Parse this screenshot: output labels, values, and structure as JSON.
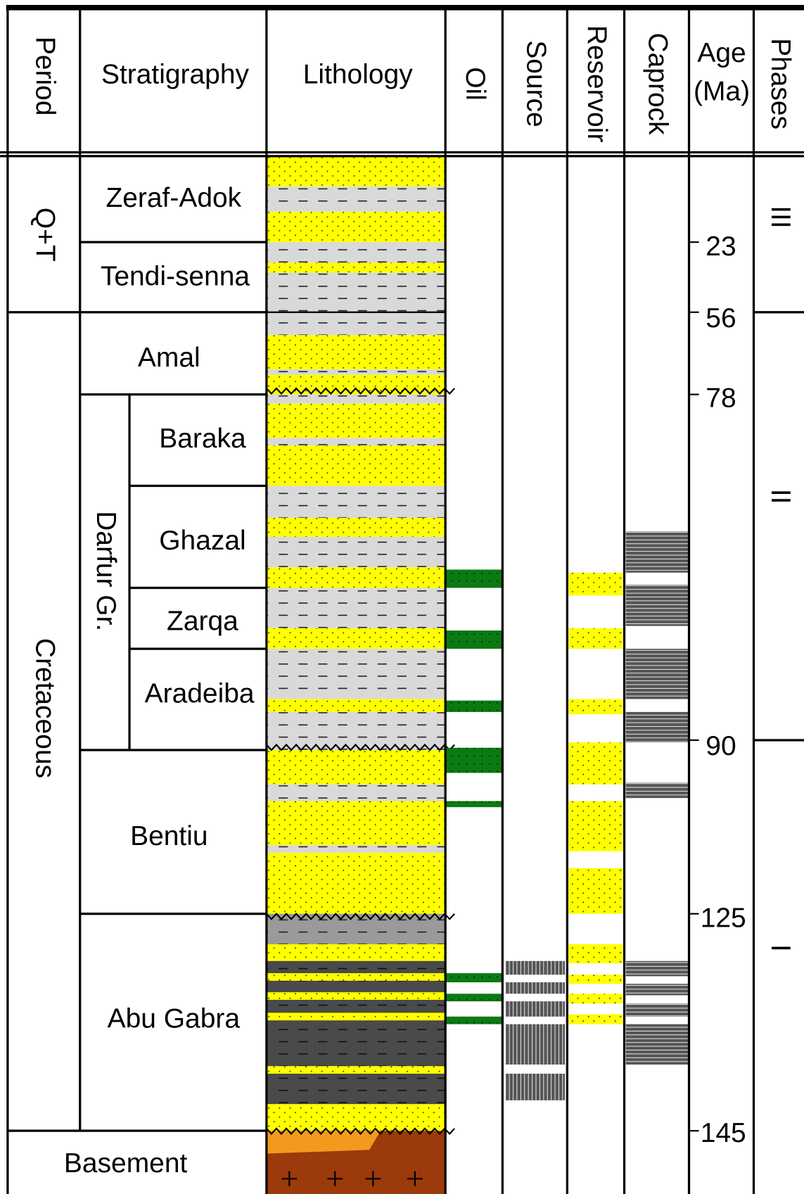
{
  "header": {
    "period": "Period",
    "stratigraphy": "Stratigraphy",
    "lithology": "Lithology",
    "oil": "Oil",
    "source": "Source",
    "reservoir": "Reservoir",
    "caprock": "Caprock",
    "age": [
      "Age",
      "(Ma)"
    ],
    "phases": "Phases"
  },
  "periods": [
    "Q+T",
    "Cretaceous",
    "Basement"
  ],
  "group": "Darfur Gr.",
  "formations": [
    "Zeraf-Adok",
    "Tendi-senna",
    "Amal",
    "Baraka",
    "Ghazal",
    "Zarqa",
    "Aradeiba",
    "Bentiu",
    "Abu Gabra"
  ],
  "ages": [
    "23",
    "56",
    "78",
    "90",
    "125",
    "145"
  ],
  "phases": [
    "III",
    "II",
    "I"
  ]
}
